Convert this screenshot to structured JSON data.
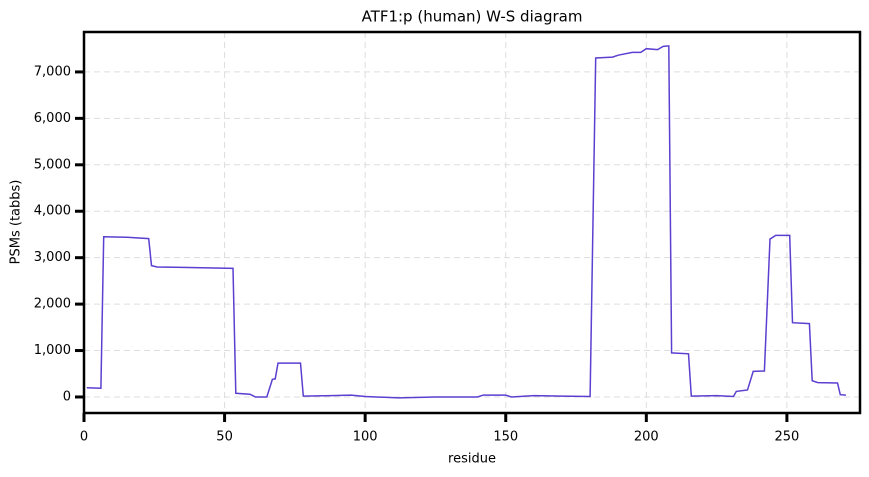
{
  "chart_data": {
    "type": "line",
    "title": "ATF1:p (human) W-S diagram",
    "x_label": "residue",
    "y_label": "PSMs (tabbs)",
    "xlim": [
      0,
      276
    ],
    "ylim": [
      -345,
      7860
    ],
    "xticks": [
      0,
      50,
      100,
      150,
      200,
      250
    ],
    "yticks": [
      0,
      {
        "value": 1000,
        "label": "1,000"
      },
      {
        "value": 2000,
        "label": "2,000"
      },
      {
        "value": 3000,
        "label": "3,000"
      },
      {
        "value": 4000,
        "label": "4,000"
      },
      {
        "value": 5000,
        "label": "5,000"
      },
      {
        "value": 6000,
        "label": "6,000"
      },
      {
        "value": 7000,
        "label": "7,000"
      }
    ],
    "grid": true,
    "series": [
      {
        "color": "#5b3fd0",
        "x": [
          1,
          6,
          7,
          15,
          23,
          24,
          26,
          35,
          53,
          54,
          59,
          61,
          65,
          67,
          68,
          69,
          77,
          78,
          88,
          95,
          100,
          112,
          125,
          140,
          142,
          150,
          152,
          160,
          170,
          180,
          182,
          188,
          190,
          195,
          198,
          200,
          204,
          206,
          208,
          209,
          215,
          216,
          225,
          231,
          232,
          236,
          238,
          242,
          244,
          246,
          251,
          252,
          258,
          259,
          261,
          268,
          269,
          271
        ],
        "values": [
          200,
          190,
          3450,
          3440,
          3410,
          2830,
          2800,
          2790,
          2770,
          80,
          60,
          0,
          0,
          380,
          390,
          730,
          730,
          20,
          30,
          40,
          10,
          -20,
          0,
          0,
          40,
          40,
          0,
          30,
          20,
          10,
          7300,
          7320,
          7360,
          7420,
          7420,
          7500,
          7480,
          7550,
          7560,
          950,
          930,
          20,
          30,
          10,
          120,
          150,
          550,
          560,
          3400,
          3480,
          3480,
          1600,
          1580,
          350,
          310,
          300,
          50,
          40
        ]
      }
    ]
  }
}
